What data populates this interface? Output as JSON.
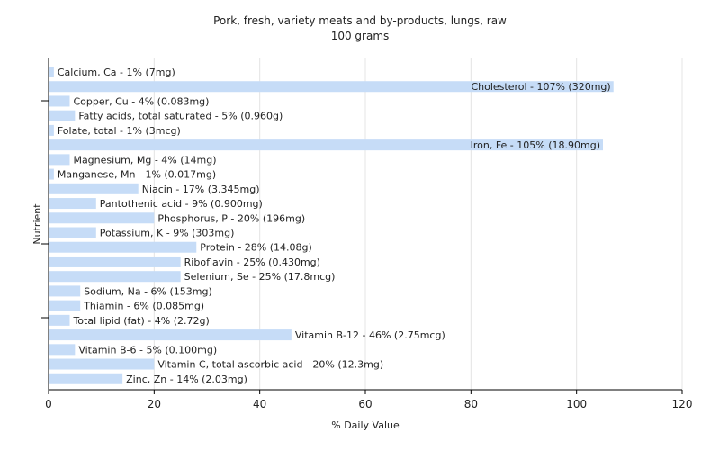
{
  "chart_data": {
    "type": "bar",
    "orientation": "horizontal",
    "title": "Pork, fresh, variety meats and by-products, lungs, raw",
    "subtitle": "100 grams",
    "xlabel": "% Daily Value",
    "ylabel": "Nutrient",
    "xlim": [
      0,
      120
    ],
    "xticks": [
      0,
      20,
      40,
      60,
      80,
      100,
      120
    ],
    "grid": true,
    "bar_color": "#c6dcf7",
    "categories": [
      "Calcium, Ca",
      "Cholesterol",
      "Copper, Cu",
      "Fatty acids, total saturated",
      "Folate, total",
      "Iron, Fe",
      "Magnesium, Mg",
      "Manganese, Mn",
      "Niacin",
      "Pantothenic acid",
      "Phosphorus, P",
      "Potassium, K",
      "Protein",
      "Riboflavin",
      "Selenium, Se",
      "Sodium, Na",
      "Thiamin",
      "Total lipid (fat)",
      "Vitamin B-12",
      "Vitamin B-6",
      "Vitamin C, total ascorbic acid",
      "Zinc, Zn"
    ],
    "values": [
      1,
      107,
      4,
      5,
      1,
      105,
      4,
      1,
      17,
      9,
      20,
      9,
      28,
      25,
      25,
      6,
      6,
      4,
      46,
      5,
      20,
      14
    ],
    "bar_labels": [
      "Calcium, Ca - 1% (7mg)",
      "Cholesterol - 107% (320mg)",
      "Copper, Cu - 4% (0.083mg)",
      "Fatty acids, total saturated - 5% (0.960g)",
      "Folate, total - 1% (3mcg)",
      "Iron, Fe - 105% (18.90mg)",
      "Magnesium, Mg - 4% (14mg)",
      "Manganese, Mn - 1% (0.017mg)",
      "Niacin - 17% (3.345mg)",
      "Pantothenic acid - 9% (0.900mg)",
      "Phosphorus, P - 20% (196mg)",
      "Potassium, K - 9% (303mg)",
      "Protein - 28% (14.08g)",
      "Riboflavin - 25% (0.430mg)",
      "Selenium, Se - 25% (17.8mcg)",
      "Sodium, Na - 6% (153mg)",
      "Thiamin - 6% (0.085mg)",
      "Total lipid (fat) - 4% (2.72g)",
      "Vitamin B-12 - 46% (2.75mcg)",
      "Vitamin B-6 - 5% (0.100mg)",
      "Vitamin C, total ascorbic acid - 20% (12.3mg)",
      "Zinc, Zn - 14% (2.03mg)"
    ]
  }
}
